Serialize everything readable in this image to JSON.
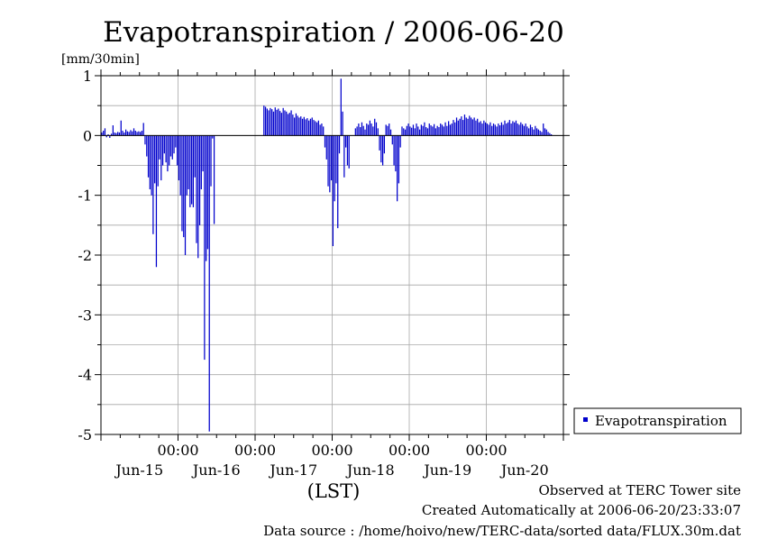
{
  "chart_data": {
    "type": "bar",
    "title": "Evapotranspiration / 2006-06-20",
    "ylabel": "[mm/30min]",
    "xlabel": "(LST)",
    "ylim": [
      -5,
      1
    ],
    "yticks": [
      1,
      0,
      -1,
      -2,
      -3,
      -4,
      -5
    ],
    "xlim": [
      0,
      288
    ],
    "x_time_ticks": [
      {
        "x": 48,
        "label": "00:00"
      },
      {
        "x": 96,
        "label": "00:00"
      },
      {
        "x": 144,
        "label": "00:00"
      },
      {
        "x": 192,
        "label": "00:00"
      },
      {
        "x": 240,
        "label": "00:00"
      }
    ],
    "x_day_labels": [
      {
        "x": 24,
        "label": "Jun-15"
      },
      {
        "x": 72,
        "label": "Jun-16"
      },
      {
        "x": 120,
        "label": "Jun-17"
      },
      {
        "x": 168,
        "label": "Jun-18"
      },
      {
        "x": 216,
        "label": "Jun-19"
      },
      {
        "x": 264,
        "label": "Jun-20"
      }
    ],
    "grid": true,
    "legend_position": "right",
    "series": [
      {
        "name": "Evapotranspiration",
        "color": "#0000cc",
        "values": [
          0.05,
          0.08,
          0.12,
          -0.03,
          0.02,
          -0.04,
          0.03,
          0.17,
          0.05,
          0.04,
          0.06,
          0.05,
          0.25,
          0.08,
          0.05,
          0.1,
          0.07,
          0.06,
          0.09,
          0.07,
          0.12,
          0.08,
          0.06,
          0.07,
          0.06,
          0.08,
          0.21,
          -0.15,
          -0.35,
          -0.7,
          -0.9,
          -1.0,
          -1.65,
          -0.8,
          -2.2,
          -0.85,
          -0.4,
          -0.75,
          -0.5,
          -0.3,
          -0.45,
          -0.6,
          -0.5,
          -0.35,
          -0.4,
          -0.3,
          -0.2,
          -0.5,
          -0.75,
          -1.0,
          -1.6,
          -1.7,
          -2.0,
          -1.0,
          -0.9,
          -1.2,
          -1.15,
          -1.2,
          -0.7,
          -1.8,
          -2.05,
          -1.5,
          -0.9,
          -0.6,
          -3.75,
          -2.1,
          -1.9,
          -4.95,
          -0.85,
          -0.05,
          -1.48,
          0.0,
          0.0,
          0.0,
          0.0,
          0.0,
          0.0,
          0.0,
          0.0,
          0.0,
          0.0,
          0.0,
          0.0,
          0.0,
          0.0,
          0.0,
          0.0,
          0.0,
          0.0,
          0.0,
          0.0,
          0.0,
          0.0,
          0.0,
          0.0,
          0.0,
          0.0,
          0.0,
          0.0,
          0.0,
          0.0,
          0.5,
          0.48,
          0.45,
          0.42,
          0.46,
          0.44,
          0.4,
          0.47,
          0.43,
          0.45,
          0.41,
          0.38,
          0.46,
          0.42,
          0.4,
          0.36,
          0.38,
          0.42,
          0.35,
          0.3,
          0.37,
          0.33,
          0.3,
          0.32,
          0.28,
          0.31,
          0.27,
          0.29,
          0.25,
          0.28,
          0.3,
          0.26,
          0.24,
          0.22,
          0.25,
          0.18,
          0.2,
          0.15,
          -0.2,
          -0.4,
          -0.85,
          -0.95,
          -0.75,
          -1.85,
          -1.1,
          -0.8,
          -1.55,
          -0.3,
          0.95,
          0.4,
          -0.7,
          -0.2,
          -0.5,
          -0.55,
          0.0,
          0.0,
          0.0,
          0.12,
          0.15,
          0.2,
          0.14,
          0.22,
          0.16,
          0.1,
          0.2,
          0.18,
          0.25,
          0.2,
          0.15,
          0.28,
          0.22,
          0.12,
          -0.25,
          -0.45,
          -0.5,
          -0.3,
          0.18,
          0.16,
          0.2,
          0.1,
          -0.15,
          -0.5,
          -0.6,
          -1.1,
          -0.8,
          -0.2,
          0.15,
          0.12,
          0.1,
          0.16,
          0.2,
          0.15,
          0.13,
          0.18,
          0.12,
          0.2,
          0.15,
          0.1,
          0.18,
          0.16,
          0.22,
          0.14,
          0.12,
          0.2,
          0.17,
          0.15,
          0.19,
          0.12,
          0.16,
          0.14,
          0.2,
          0.18,
          0.15,
          0.22,
          0.16,
          0.24,
          0.18,
          0.2,
          0.26,
          0.22,
          0.3,
          0.25,
          0.28,
          0.32,
          0.26,
          0.35,
          0.3,
          0.28,
          0.33,
          0.3,
          0.27,
          0.3,
          0.25,
          0.28,
          0.22,
          0.24,
          0.2,
          0.25,
          0.22,
          0.2,
          0.18,
          0.22,
          0.16,
          0.2,
          0.18,
          0.15,
          0.2,
          0.17,
          0.22,
          0.18,
          0.25,
          0.2,
          0.22,
          0.26,
          0.2,
          0.24,
          0.22,
          0.25,
          0.2,
          0.18,
          0.22,
          0.19,
          0.16,
          0.2,
          0.15,
          0.12,
          0.18,
          0.14,
          0.1,
          0.16,
          0.12,
          0.1,
          0.08,
          0.06,
          0.2,
          0.12,
          0.1,
          0.06,
          0.04,
          0.02,
          0.0,
          0.0,
          0.0
        ]
      }
    ]
  },
  "footer": {
    "line1": "Observed at TERC Tower site",
    "line2": "Created Automatically at 2006-06-20/23:33:07",
    "line3": "Data source : /home/hoivo/new/TERC-data/sorted  data/FLUX.30m.dat"
  }
}
